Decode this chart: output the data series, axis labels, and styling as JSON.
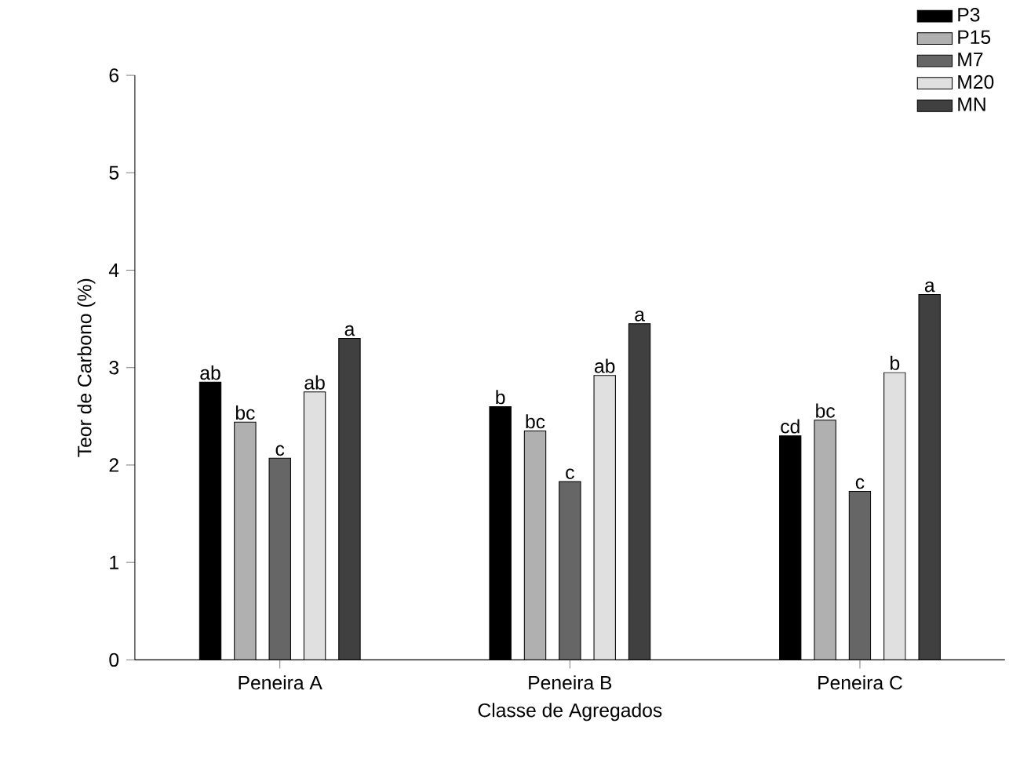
{
  "chart_data": {
    "type": "bar",
    "xlabel": "Classe de Agregados",
    "ylabel": "Teor de Carbono (%)",
    "categories": [
      "Peneira A",
      "Peneira B",
      "Peneira C"
    ],
    "ylim": [
      0,
      6
    ],
    "yticks": [
      0,
      1,
      2,
      3,
      4,
      5,
      6
    ],
    "legend": "top right",
    "series": [
      {
        "name": "P3",
        "color": "#000000",
        "values": [
          2.85,
          2.6,
          2.3
        ],
        "value_labels": [
          "ab",
          "b",
          "cd"
        ]
      },
      {
        "name": "P15",
        "color": "#b0b0b0",
        "values": [
          2.44,
          2.35,
          2.46
        ],
        "value_labels": [
          "bc",
          "bc",
          "bc"
        ]
      },
      {
        "name": "M7",
        "color": "#666666",
        "values": [
          2.07,
          1.83,
          1.73
        ],
        "value_labels": [
          "c",
          "c",
          "c"
        ]
      },
      {
        "name": "M20",
        "color": "#e0e0e0",
        "values": [
          2.75,
          2.92,
          2.95
        ],
        "value_labels": [
          "ab",
          "ab",
          "b"
        ]
      },
      {
        "name": "MN",
        "color": "#404040",
        "values": [
          3.3,
          3.45,
          3.75
        ],
        "value_labels": [
          "a",
          "a",
          "a"
        ]
      }
    ]
  }
}
